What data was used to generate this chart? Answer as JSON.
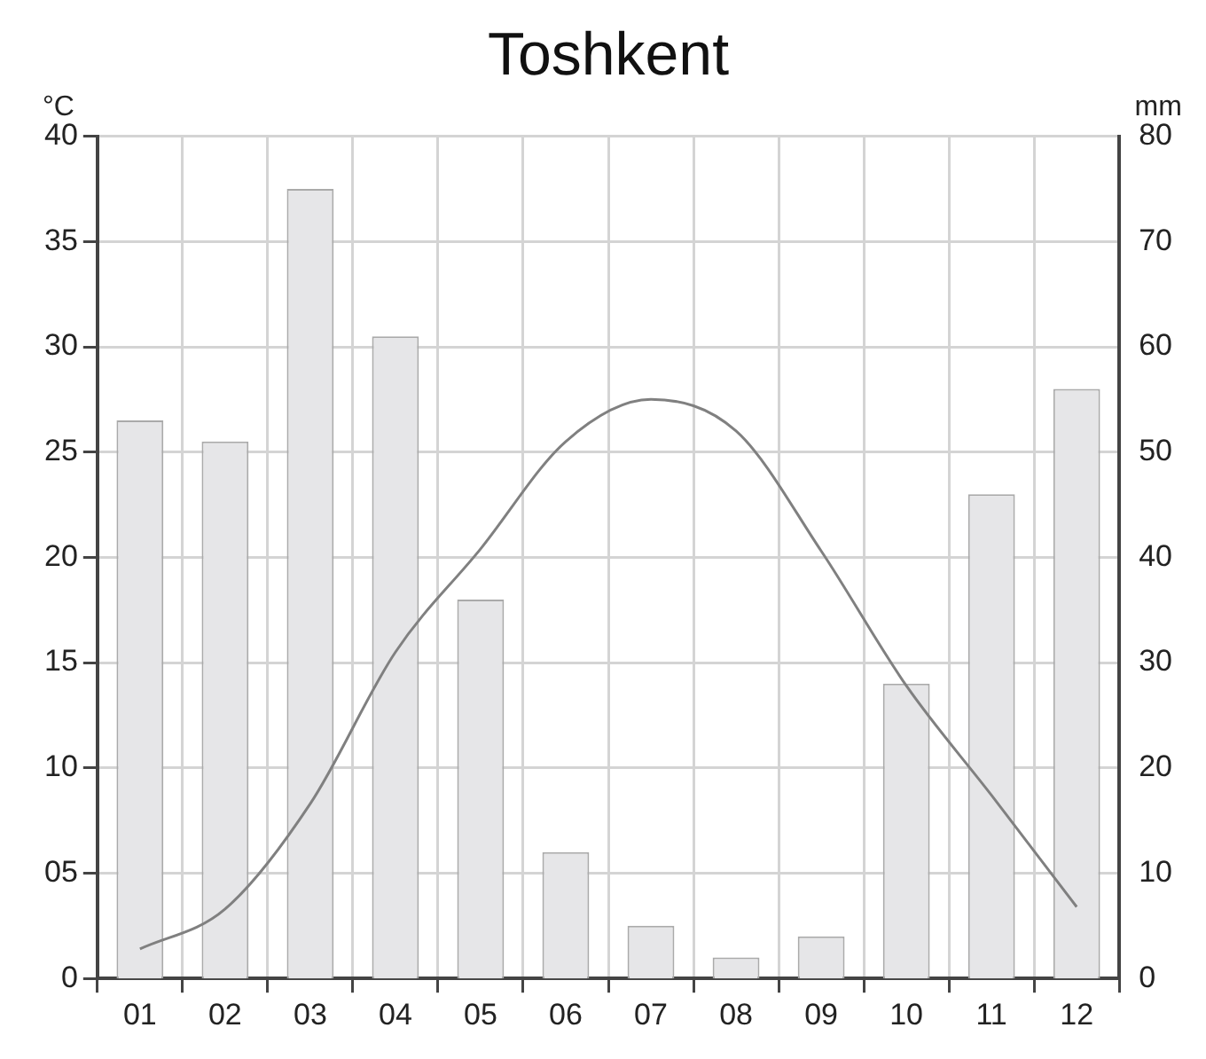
{
  "chart_data": {
    "type": "bar",
    "title": "Toshkent",
    "ylabel": "°C",
    "y2label": "mm",
    "categories": [
      "01",
      "02",
      "03",
      "04",
      "05",
      "06",
      "07",
      "08",
      "09",
      "10",
      "11",
      "12"
    ],
    "series": [
      {
        "axis": "y2",
        "color": "#e6e6e8",
        "values": [
          53,
          51,
          75,
          61,
          36,
          12,
          5,
          2,
          4,
          28,
          46,
          56
        ]
      },
      {
        "type": "line",
        "axis": "y",
        "color": "#808080",
        "values": [
          1.4,
          3.3,
          8.3,
          15.5,
          20.4,
          25.5,
          27.5,
          26,
          20.3,
          13.9,
          8.7,
          3.4
        ]
      }
    ],
    "ylim": [
      0,
      40
    ],
    "yticks": [
      0,
      {
        "value": 5,
        "label": "05"
      },
      10,
      15,
      20,
      25,
      30,
      35,
      40
    ],
    "y2lim": [
      0,
      80
    ],
    "y2ticks": [
      0,
      10,
      20,
      30,
      40,
      50,
      60,
      70,
      80
    ],
    "grid": true,
    "legend": false,
    "marker": "none",
    "line_style": "solid"
  }
}
